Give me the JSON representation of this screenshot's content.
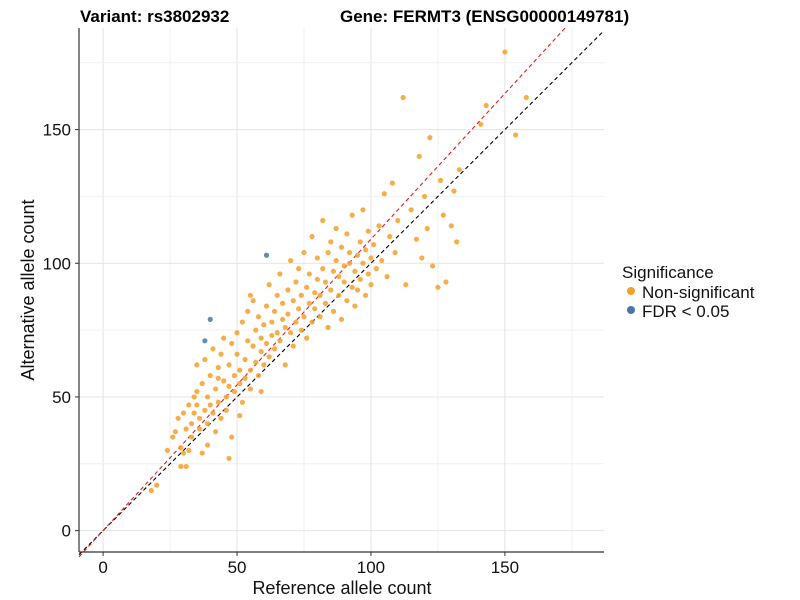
{
  "title_left": "Variant: rs3802932",
  "title_right": "Gene: FERMT3 (ENSG00000149781)",
  "chart_data": {
    "type": "scatter",
    "xlabel": "Reference allele count",
    "ylabel": "Alternative allele count",
    "xlim": [
      -9,
      187
    ],
    "ylim": [
      -8,
      188
    ],
    "x_ticks": [
      0,
      50,
      100,
      150
    ],
    "y_ticks": [
      0,
      50,
      100,
      150
    ],
    "grid": true,
    "legend": {
      "title": "Significance",
      "placement": "right",
      "entries": [
        {
          "label": "Non-significant",
          "color": "#f5a02a"
        },
        {
          "label": "FDR < 0.05",
          "color": "#4a77a8"
        }
      ]
    },
    "reference_lines": [
      {
        "slope": 1.0,
        "intercept": 0,
        "color": "#000000",
        "style": "dashed"
      },
      {
        "slope": 1.09,
        "intercept": 0,
        "color": "#e41a1c",
        "style": "dashed"
      }
    ],
    "series": [
      {
        "name": "FDR < 0.05",
        "color": "#4a77a8",
        "points": [
          [
            38,
            71
          ],
          [
            40,
            79
          ],
          [
            61,
            103
          ]
        ]
      },
      {
        "name": "Non-significant",
        "color": "#f5a02a",
        "points": [
          [
            18,
            15
          ],
          [
            20,
            17
          ],
          [
            24,
            30
          ],
          [
            26,
            35
          ],
          [
            27,
            37
          ],
          [
            28,
            42
          ],
          [
            29,
            24
          ],
          [
            29,
            31
          ],
          [
            30,
            29
          ],
          [
            30,
            44
          ],
          [
            31,
            38
          ],
          [
            31,
            24
          ],
          [
            32,
            47
          ],
          [
            32,
            30
          ],
          [
            33,
            40
          ],
          [
            33,
            35
          ],
          [
            34,
            50
          ],
          [
            34,
            44
          ],
          [
            35,
            47
          ],
          [
            35,
            52
          ],
          [
            36,
            42
          ],
          [
            36,
            38
          ],
          [
            37,
            55
          ],
          [
            37,
            29
          ],
          [
            38,
            45
          ],
          [
            38,
            64
          ],
          [
            39,
            50
          ],
          [
            39,
            40
          ],
          [
            40,
            58
          ],
          [
            40,
            47
          ],
          [
            41,
            68
          ],
          [
            41,
            44
          ],
          [
            42,
            53
          ],
          [
            42,
            37
          ],
          [
            43,
            61
          ],
          [
            43,
            48
          ],
          [
            44,
            66
          ],
          [
            44,
            42
          ],
          [
            45,
            56
          ],
          [
            45,
            72
          ],
          [
            46,
            50
          ],
          [
            46,
            45
          ],
          [
            47,
            62
          ],
          [
            47,
            54
          ],
          [
            48,
            70
          ],
          [
            48,
            35
          ],
          [
            49,
            58
          ],
          [
            49,
            52
          ],
          [
            50,
            74
          ],
          [
            50,
            66
          ],
          [
            51,
            55
          ],
          [
            51,
            60
          ],
          [
            52,
            78
          ],
          [
            52,
            48
          ],
          [
            53,
            64
          ],
          [
            53,
            57
          ],
          [
            54,
            82
          ],
          [
            54,
            71
          ],
          [
            55,
            60
          ],
          [
            55,
            53
          ],
          [
            56,
            69
          ],
          [
            56,
            86
          ],
          [
            57,
            63
          ],
          [
            57,
            75
          ],
          [
            58,
            58
          ],
          [
            58,
            80
          ],
          [
            59,
            67
          ],
          [
            59,
            72
          ],
          [
            60,
            77
          ],
          [
            60,
            62
          ],
          [
            61,
            84
          ],
          [
            61,
            70
          ],
          [
            62,
            65
          ],
          [
            62,
            92
          ],
          [
            63,
            73
          ],
          [
            63,
            78
          ],
          [
            64,
            68
          ],
          [
            64,
            82
          ],
          [
            65,
            88
          ],
          [
            65,
            74
          ],
          [
            66,
            71
          ],
          [
            66,
            96
          ],
          [
            67,
            79
          ],
          [
            67,
            85
          ],
          [
            68,
            62
          ],
          [
            68,
            76
          ],
          [
            69,
            90
          ],
          [
            69,
            81
          ],
          [
            70,
            74
          ],
          [
            70,
            101
          ],
          [
            71,
            86
          ],
          [
            71,
            69
          ],
          [
            72,
            93
          ],
          [
            72,
            78
          ],
          [
            73,
            83
          ],
          [
            73,
            98
          ],
          [
            74,
            75
          ],
          [
            74,
            88
          ],
          [
            75,
            80
          ],
          [
            75,
            104
          ],
          [
            76,
            91
          ],
          [
            76,
            72
          ],
          [
            77,
            85
          ],
          [
            77,
            96
          ],
          [
            78,
            78
          ],
          [
            78,
            110
          ],
          [
            79,
            89
          ],
          [
            79,
            83
          ],
          [
            80,
            94
          ],
          [
            80,
            102
          ],
          [
            81,
            80
          ],
          [
            81,
            88
          ],
          [
            82,
            98
          ],
          [
            82,
            116
          ],
          [
            83,
            85
          ],
          [
            83,
            93
          ],
          [
            84,
            104
          ],
          [
            84,
            76
          ],
          [
            85,
            90
          ],
          [
            85,
            108
          ],
          [
            86,
            97
          ],
          [
            86,
            82
          ],
          [
            87,
            101
          ],
          [
            87,
            113
          ],
          [
            88,
            88
          ],
          [
            88,
            95
          ],
          [
            89,
            106
          ],
          [
            89,
            79
          ],
          [
            90,
            93
          ],
          [
            90,
            99
          ],
          [
            91,
            111
          ],
          [
            91,
            86
          ],
          [
            92,
            100
          ],
          [
            92,
            104
          ],
          [
            93,
            91
          ],
          [
            93,
            118
          ],
          [
            94,
            97
          ],
          [
            94,
            84
          ],
          [
            95,
            103
          ],
          [
            95,
            90
          ],
          [
            96,
            108
          ],
          [
            96,
            94
          ],
          [
            97,
            100
          ],
          [
            97,
            120
          ],
          [
            98,
            88
          ],
          [
            98,
            105
          ],
          [
            99,
            96
          ],
          [
            99,
            112
          ],
          [
            100,
            102
          ],
          [
            100,
            92
          ],
          [
            101,
            107
          ],
          [
            102,
            98
          ],
          [
            103,
            114
          ],
          [
            104,
            101
          ],
          [
            105,
            126
          ],
          [
            106,
            95
          ],
          [
            107,
            110
          ],
          [
            108,
            130
          ],
          [
            109,
            104
          ],
          [
            110,
            116
          ],
          [
            112,
            162
          ],
          [
            113,
            92
          ],
          [
            115,
            120
          ],
          [
            117,
            109
          ],
          [
            118,
            140
          ],
          [
            119,
            102
          ],
          [
            120,
            125
          ],
          [
            121,
            113
          ],
          [
            122,
            147
          ],
          [
            123,
            99
          ],
          [
            125,
            91
          ],
          [
            126,
            131
          ],
          [
            127,
            118
          ],
          [
            128,
            93
          ],
          [
            130,
            114
          ],
          [
            131,
            127
          ],
          [
            132,
            108
          ],
          [
            133,
            135
          ],
          [
            141,
            152
          ],
          [
            143,
            159
          ],
          [
            150,
            179
          ],
          [
            154,
            148
          ],
          [
            158,
            162
          ],
          [
            35,
            62
          ],
          [
            39,
            32
          ],
          [
            43,
            57
          ],
          [
            47,
            27
          ],
          [
            51,
            43
          ],
          [
            55,
            88
          ],
          [
            59,
            52
          ]
        ]
      }
    ]
  }
}
